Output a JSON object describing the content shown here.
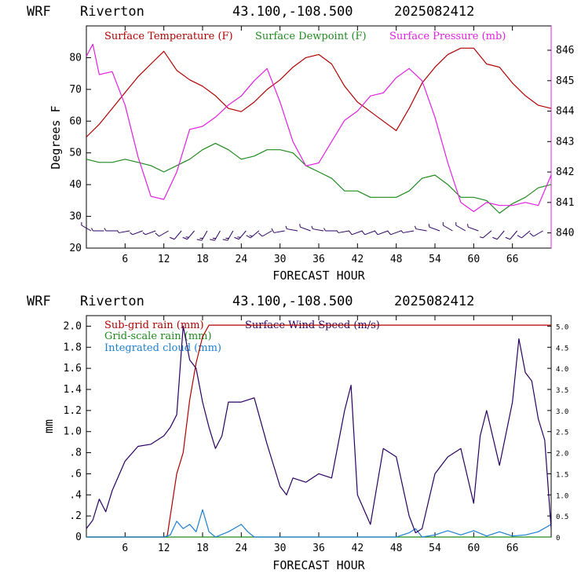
{
  "header": {
    "model": "WRF",
    "station": "Riverton",
    "coords": "43.100,-108.500",
    "init": "2025082412"
  },
  "colors": {
    "temperature": "#b00000",
    "dewpoint": "#1f8a1f",
    "pressure": "#e020e0",
    "wind_barbs": "#2a0060",
    "subgrid_rain": "#b00000",
    "gridscale_rain": "#1f8a1f",
    "cloud": "#1e7fd0",
    "wind_speed": "#2a0060"
  },
  "chart_data": [
    {
      "type": "line",
      "xlabel": "FORECAST HOUR",
      "ylabel": "Degrees F",
      "xlim": [
        0,
        72
      ],
      "ylim": [
        20,
        90
      ],
      "y2lim": [
        839.5,
        846.8
      ],
      "x_ticks": [
        "6",
        "12",
        "18",
        "24",
        "30",
        "36",
        "42",
        "48",
        "54",
        "60",
        "66"
      ],
      "y_ticks": [
        "20",
        "30",
        "40",
        "50",
        "60",
        "70",
        "80"
      ],
      "y2_ticks": [
        "840",
        "841",
        "842",
        "843",
        "844",
        "845",
        "846"
      ],
      "legend": [
        "Surface Temperature (F)",
        "Surface Dewpoint (F)",
        "Surface Pressure (mb)"
      ],
      "series": [
        {
          "name": "Surface Temperature (F)",
          "axis": "left",
          "x": [
            0,
            2,
            4,
            6,
            8,
            10,
            12,
            14,
            16,
            18,
            20,
            22,
            24,
            26,
            28,
            30,
            32,
            34,
            36,
            38,
            40,
            42,
            44,
            46,
            48,
            50,
            52,
            54,
            56,
            58,
            60,
            62,
            64,
            66,
            68,
            70,
            72
          ],
          "y": [
            55,
            59,
            64,
            69,
            74,
            78,
            82,
            76,
            73,
            71,
            68,
            64,
            63,
            66,
            70,
            73,
            77,
            80,
            81,
            78,
            71,
            66,
            63,
            60,
            57,
            64,
            72,
            77,
            81,
            83,
            83,
            78,
            77,
            72,
            68,
            65,
            64
          ]
        },
        {
          "name": "Surface Dewpoint (F)",
          "axis": "left",
          "x": [
            0,
            2,
            4,
            6,
            8,
            10,
            12,
            14,
            16,
            18,
            20,
            22,
            24,
            26,
            28,
            30,
            32,
            34,
            36,
            38,
            40,
            42,
            44,
            46,
            48,
            50,
            52,
            54,
            56,
            58,
            60,
            62,
            64,
            66,
            68,
            70,
            72
          ],
          "y": [
            48,
            47,
            47,
            48,
            47,
            46,
            44,
            46,
            48,
            51,
            53,
            51,
            48,
            49,
            51,
            51,
            50,
            46,
            44,
            42,
            38,
            38,
            36,
            36,
            36,
            38,
            42,
            43,
            40,
            36,
            36,
            35,
            31,
            34,
            36,
            39,
            40
          ]
        },
        {
          "name": "Surface Pressure (mb)",
          "axis": "right",
          "x": [
            0,
            1,
            2,
            4,
            6,
            8,
            10,
            12,
            14,
            16,
            18,
            20,
            22,
            24,
            26,
            28,
            30,
            32,
            34,
            36,
            38,
            40,
            42,
            44,
            46,
            48,
            50,
            52,
            54,
            56,
            58,
            60,
            62,
            64,
            66,
            68,
            70,
            72
          ],
          "y": [
            845.8,
            846.2,
            845.2,
            845.3,
            844.2,
            842.5,
            841.2,
            841.1,
            842.0,
            843.4,
            843.5,
            843.8,
            844.2,
            844.5,
            845.0,
            845.4,
            844.3,
            843.0,
            842.2,
            842.3,
            843.0,
            843.7,
            844.0,
            844.5,
            844.6,
            845.1,
            845.4,
            845.0,
            843.8,
            842.3,
            841.0,
            840.7,
            841.0,
            840.9,
            840.9,
            841.0,
            840.9,
            841.9
          ]
        }
      ],
      "wind_barbs": {
        "x": [
          0,
          2,
          4,
          6,
          8,
          10,
          12,
          14,
          16,
          18,
          20,
          22,
          24,
          26,
          28,
          30,
          32,
          34,
          36,
          38,
          40,
          42,
          44,
          46,
          48,
          50,
          52,
          54,
          56,
          58,
          60,
          62,
          64,
          66,
          68,
          70
        ],
        "direction_deg": [
          300,
          270,
          270,
          260,
          250,
          250,
          240,
          220,
          220,
          210,
          210,
          210,
          220,
          230,
          240,
          260,
          280,
          290,
          280,
          270,
          260,
          250,
          250,
          250,
          250,
          260,
          280,
          290,
          300,
          300,
          290,
          230,
          220,
          220,
          230,
          240
        ],
        "speed_kt": [
          5,
          5,
          5,
          5,
          5,
          5,
          10,
          10,
          15,
          15,
          15,
          15,
          15,
          15,
          10,
          10,
          5,
          5,
          5,
          5,
          5,
          10,
          10,
          10,
          10,
          5,
          5,
          5,
          5,
          5,
          5,
          5,
          10,
          10,
          10,
          10
        ]
      }
    },
    {
      "type": "line",
      "xlabel": "FORECAST HOUR",
      "ylabel": "mm",
      "xlim": [
        0,
        72
      ],
      "ylim": [
        0,
        2.1
      ],
      "y2lim": [
        0,
        5.25
      ],
      "x_ticks": [
        "6",
        "12",
        "18",
        "24",
        "30",
        "36",
        "42",
        "48",
        "54",
        "60",
        "66"
      ],
      "y_ticks": [
        "0",
        ".2",
        ".4",
        ".6",
        ".8",
        "1.0",
        "1.2",
        "1.4",
        "1.6",
        "1.8",
        "2.0"
      ],
      "y2_ticks": [
        "0",
        "0.5",
        "1.0",
        "1.5",
        "2.0",
        "2.5",
        "3.0",
        "3.5",
        "4.0",
        "4.5",
        "5.0"
      ],
      "legend": [
        "Sub-grid rain (mm)",
        "Grid-scale rain (mm)",
        "Integrated cloud (mm)",
        "Surface Wind Speed (m/s)"
      ],
      "series": [
        {
          "name": "Sub-grid rain (mm)",
          "axis": "left",
          "x": [
            0,
            12.5,
            13,
            14,
            15,
            16,
            17,
            18,
            19,
            20,
            24,
            30,
            36,
            42,
            48,
            54,
            60,
            66,
            72
          ],
          "y": [
            0,
            0,
            0.2,
            0.6,
            0.8,
            1.3,
            1.65,
            1.9,
            2.01,
            2.01,
            2.01,
            2.01,
            2.01,
            2.01,
            2.01,
            2.01,
            2.01,
            2.01,
            2.01
          ]
        },
        {
          "name": "Grid-scale rain (mm)",
          "axis": "left",
          "x": [
            0,
            72
          ],
          "y": [
            0,
            0
          ]
        },
        {
          "name": "Integrated cloud (mm)",
          "axis": "left",
          "x": [
            0,
            12,
            13,
            14,
            15,
            16,
            17,
            18,
            19,
            20,
            22,
            24,
            25,
            26,
            30,
            36,
            42,
            48,
            50,
            51,
            52,
            54,
            56,
            58,
            60,
            62,
            64,
            66,
            68,
            70,
            72
          ],
          "y": [
            0,
            0,
            0.02,
            0.15,
            0.08,
            0.12,
            0.05,
            0.26,
            0.05,
            0,
            0.05,
            0.12,
            0.05,
            0,
            0,
            0,
            0,
            0,
            0.04,
            0.08,
            0,
            0.02,
            0.06,
            0.02,
            0.06,
            0.01,
            0.05,
            0.01,
            0.02,
            0.05,
            0.12
          ]
        },
        {
          "name": "Surface Wind Speed (m/s)",
          "axis": "right",
          "x": [
            0,
            1,
            2,
            3,
            4,
            6,
            8,
            10,
            12,
            13,
            14,
            15,
            16,
            17,
            18,
            19,
            20,
            21,
            22,
            24,
            26,
            28,
            30,
            31,
            32,
            34,
            36,
            38,
            40,
            41,
            42,
            44,
            46,
            48,
            50,
            51,
            52,
            54,
            56,
            58,
            60,
            61,
            62,
            64,
            66,
            67,
            68,
            69,
            70,
            71,
            72
          ],
          "y": [
            0.2,
            0.4,
            0.9,
            0.6,
            1.1,
            1.8,
            2.15,
            2.2,
            2.4,
            2.6,
            2.9,
            5.0,
            4.2,
            4.0,
            3.2,
            2.6,
            2.1,
            2.4,
            3.2,
            3.2,
            3.3,
            2.2,
            1.2,
            1.0,
            1.4,
            1.3,
            1.5,
            1.4,
            3.0,
            3.6,
            1.0,
            0.3,
            2.1,
            1.9,
            0.5,
            0.1,
            0.2,
            1.5,
            1.9,
            2.1,
            0.8,
            2.4,
            3.0,
            1.7,
            3.2,
            4.7,
            3.9,
            3.7,
            2.8,
            2.3,
            0.2
          ]
        }
      ]
    }
  ]
}
